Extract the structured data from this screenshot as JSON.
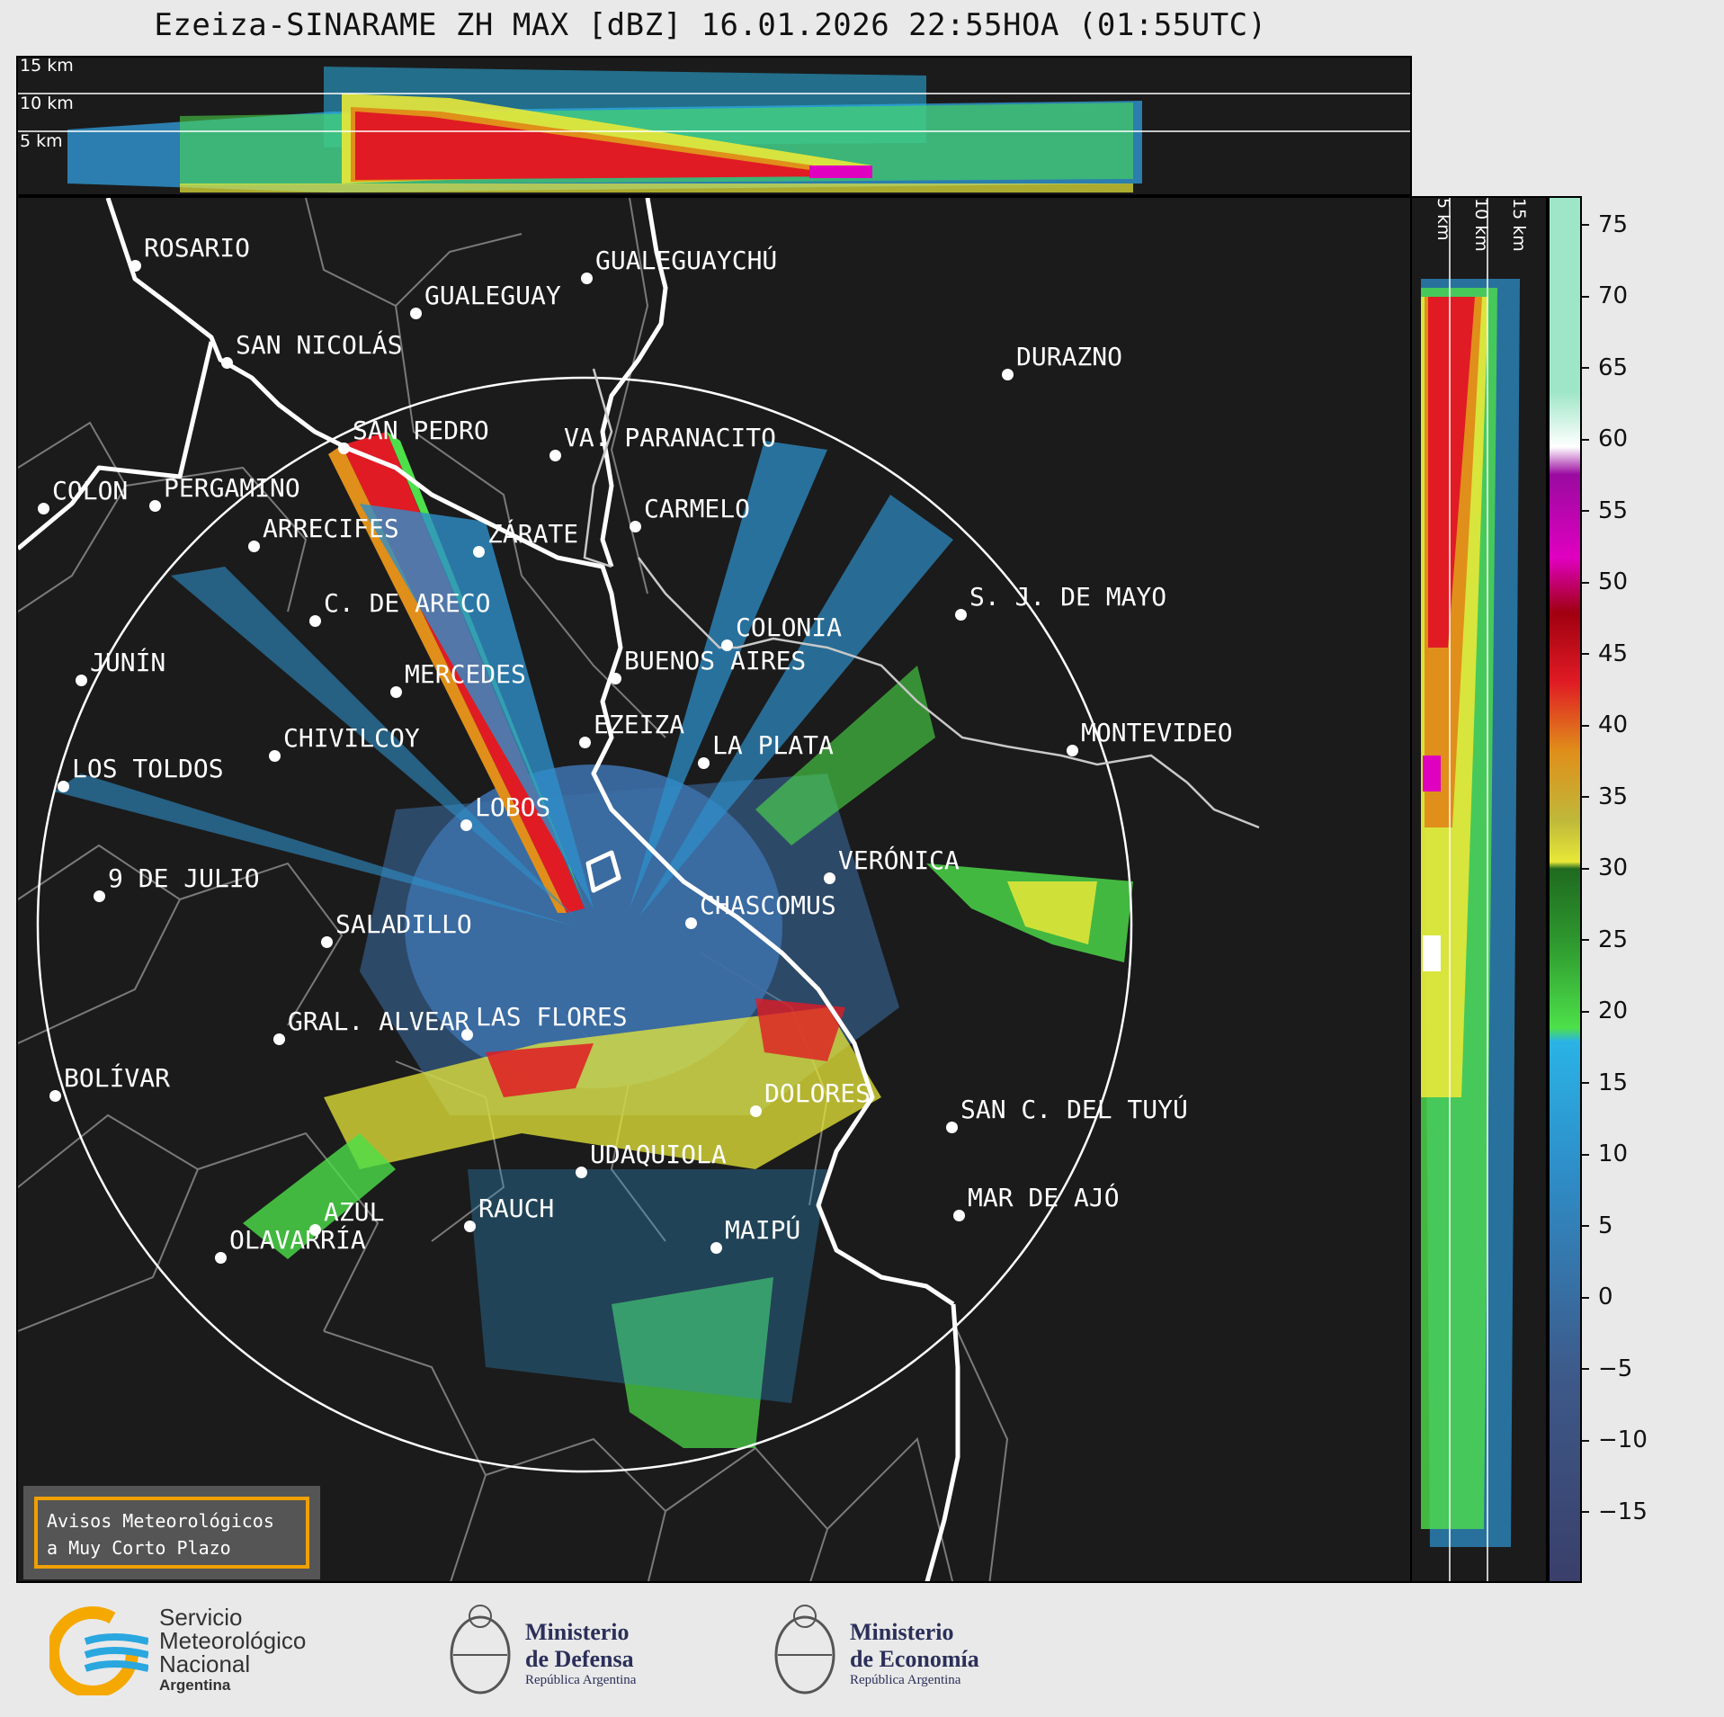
{
  "title": "Ezeiza-SINARAME ZH MAX [dBZ] 16.01.2026 22:55HOA (01:55UTC)",
  "top_panel": {
    "altitudes": [
      "15 km",
      "10 km",
      "5 km"
    ]
  },
  "side_panel": {
    "altitudes": [
      "5 km",
      "10 km",
      "15 km"
    ]
  },
  "colorbar": {
    "ticks": [
      "75",
      "70",
      "65",
      "60",
      "55",
      "50",
      "45",
      "40",
      "35",
      "30",
      "25",
      "20",
      "15",
      "10",
      "5",
      "0",
      "−5",
      "−10",
      "−15"
    ],
    "range": [
      -20,
      77
    ],
    "colors": {
      "very_low": "#3a3f6a",
      "low": "#3d5a8a",
      "mid_low": "#2e8fc9",
      "light_blue": "#2ab3e6",
      "light_green": "#4de04a",
      "green": "#2f9a2f",
      "dark_green": "#1f6a1f",
      "yellow": "#e8e838",
      "olive": "#bfb83a",
      "orange": "#e08f1a",
      "red": "#e01b24",
      "dark_red": "#a00010",
      "magenta": "#e000c0",
      "purple": "#9a0aa0",
      "white": "#ffffff",
      "mint": "#9ee6c7"
    }
  },
  "cities": [
    {
      "id": "rosario",
      "name": "ROSARIO"
    },
    {
      "id": "gualeguaychu",
      "name": "GUALEGUAYCHÚ"
    },
    {
      "id": "gualeguay",
      "name": "GUALEGUAY"
    },
    {
      "id": "san-nicolas",
      "name": "SAN NICOLÁS"
    },
    {
      "id": "durazno",
      "name": "DURAZNO"
    },
    {
      "id": "san-pedro",
      "name": "SAN PEDRO"
    },
    {
      "id": "va-paranacito",
      "name": "VA. PARANACITO"
    },
    {
      "id": "colon",
      "name": "COLON"
    },
    {
      "id": "pergamino",
      "name": "PERGAMINO"
    },
    {
      "id": "carmelo",
      "name": "CARMELO"
    },
    {
      "id": "arrecifes",
      "name": "ARRECIFES"
    },
    {
      "id": "zarate",
      "name": "ZÁRATE"
    },
    {
      "id": "sj-de-mayo",
      "name": "S. J. DE MAYO"
    },
    {
      "id": "c-de-areco",
      "name": "C. DE ARECO"
    },
    {
      "id": "colonia",
      "name": "COLONIA"
    },
    {
      "id": "junin",
      "name": "JUNÍN"
    },
    {
      "id": "buenos-aires",
      "name": "BUENOS AIRES"
    },
    {
      "id": "mercedes",
      "name": "MERCEDES"
    },
    {
      "id": "montevideo",
      "name": "MONTEVIDEO"
    },
    {
      "id": "ezeiza",
      "name": "EZEIZA"
    },
    {
      "id": "chivilcoy",
      "name": "CHIVILCOY"
    },
    {
      "id": "la-plata",
      "name": "LA PLATA"
    },
    {
      "id": "los-toldos",
      "name": "LOS TOLDOS"
    },
    {
      "id": "lobos",
      "name": "LOBOS"
    },
    {
      "id": "veronica",
      "name": "VERÓNICA"
    },
    {
      "id": "9-de-julio",
      "name": "9 DE JULIO"
    },
    {
      "id": "chascomus",
      "name": "CHASCOMUS"
    },
    {
      "id": "saladillo",
      "name": "SALADILLO"
    },
    {
      "id": "gral-alvear",
      "name": "GRAL. ALVEAR"
    },
    {
      "id": "las-flores",
      "name": "LAS FLORES"
    },
    {
      "id": "bolivar",
      "name": "BOLÍVAR"
    },
    {
      "id": "dolores",
      "name": "DOLORES"
    },
    {
      "id": "san-c-del-tuyu",
      "name": "SAN C. DEL TUYÚ"
    },
    {
      "id": "udaquiola",
      "name": "UDAQUIOLA"
    },
    {
      "id": "mar-de-ajo",
      "name": "MAR DE AJÓ"
    },
    {
      "id": "azul",
      "name": "AZUL"
    },
    {
      "id": "rauch",
      "name": "RAUCH"
    },
    {
      "id": "olavarria",
      "name": "OLAVARRÍA"
    },
    {
      "id": "maipu",
      "name": "MAIPÚ"
    }
  ],
  "warning_box": {
    "line1": "Avisos Meteorológicos",
    "line2": "a Muy Corto Plazo"
  },
  "footer": {
    "smn": {
      "line1": "Servicio",
      "line2": "Meteorológico",
      "line3": "Nacional",
      "line4": "Argentina"
    },
    "defensa": {
      "line1": "Ministerio",
      "line2": "de Defensa",
      "line3": "República Argentina"
    },
    "economia": {
      "line1": "Ministerio",
      "line2": "de Economía",
      "line3": "República Argentina"
    }
  }
}
